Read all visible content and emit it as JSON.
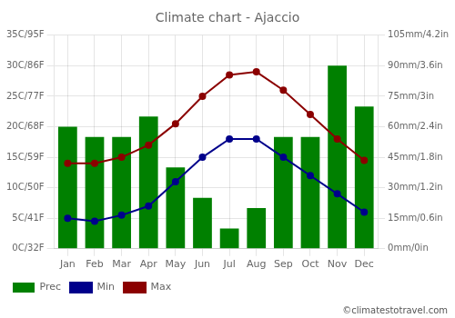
{
  "chart_data": {
    "type": "bar",
    "title": "Climate chart - Ajaccio",
    "categories": [
      "Jan",
      "Feb",
      "Mar",
      "Apr",
      "May",
      "Jun",
      "Jul",
      "Aug",
      "Sep",
      "Oct",
      "Nov",
      "Dec"
    ],
    "series": [
      {
        "name": "Prec",
        "type": "bar",
        "axis": "y2",
        "color": "#008000",
        "values": [
          60,
          55,
          55,
          65,
          40,
          25,
          10,
          20,
          55,
          55,
          90,
          70
        ]
      },
      {
        "name": "Min",
        "type": "line",
        "color": "#00008B",
        "marker": "circle",
        "line_style": "solid",
        "values": [
          5.0,
          4.5,
          5.5,
          7.0,
          11.0,
          15.0,
          18.0,
          18.0,
          15.0,
          12.0,
          9.0,
          6.0
        ]
      },
      {
        "name": "Max",
        "type": "line",
        "color": "#8B0000",
        "marker": "circle",
        "line_style": "solid",
        "values": [
          14.0,
          14.0,
          15.0,
          17.0,
          20.5,
          25.0,
          28.5,
          29.0,
          26.0,
          22.0,
          18.0,
          14.5
        ]
      }
    ],
    "ylim": [
      0,
      35
    ],
    "yticks": [
      {
        "value": 0,
        "label": "0C/32F"
      },
      {
        "value": 5,
        "label": "5C/41F"
      },
      {
        "value": 10,
        "label": "10C/50F"
      },
      {
        "value": 15,
        "label": "15C/59F"
      },
      {
        "value": 20,
        "label": "20C/68F"
      },
      {
        "value": 25,
        "label": "25C/77F"
      },
      {
        "value": 30,
        "label": "30C/86F"
      },
      {
        "value": 35,
        "label": "35C/95F"
      }
    ],
    "y2lim": [
      0,
      105
    ],
    "y2ticks": [
      {
        "value": 0,
        "label": "0mm/0in"
      },
      {
        "value": 15,
        "label": "15mm/0.6in"
      },
      {
        "value": 30,
        "label": "30mm/1.2in"
      },
      {
        "value": 45,
        "label": "45mm/1.8in"
      },
      {
        "value": 60,
        "label": "60mm/2.4in"
      },
      {
        "value": 75,
        "label": "75mm/3in"
      },
      {
        "value": 90,
        "label": "90mm/3.6in"
      },
      {
        "value": 105,
        "label": "105mm/4.2in"
      }
    ],
    "grid": true,
    "legend": "lower left",
    "annotations": [
      "©climatestotravel.com"
    ]
  }
}
